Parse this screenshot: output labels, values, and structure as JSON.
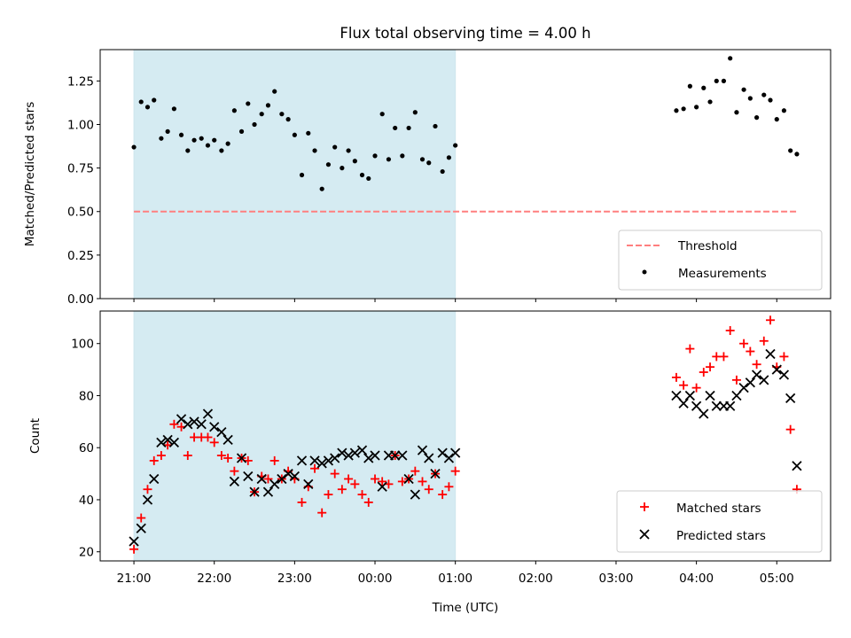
{
  "chart_data": [
    {
      "type": "scatter",
      "title": "Flux total observing time = 4.00 h",
      "ylabel": "Matched/Predicted stars",
      "xlabel": "",
      "ylim": [
        0.0,
        1.43
      ],
      "yticks": [
        "0.00",
        "0.25",
        "0.50",
        "0.75",
        "1.00",
        "1.25"
      ],
      "ytick_values": [
        0.0,
        0.25,
        0.5,
        0.75,
        1.0,
        1.25
      ],
      "shaded_interval_hours": [
        21.0,
        25.0
      ],
      "shaded_color": "#add8e6",
      "threshold": {
        "name": "Threshold",
        "value": 0.5,
        "x_range_hours": [
          21.0,
          29.25
        ],
        "color": "#ff7f7f",
        "style": "dashed"
      },
      "legend": {
        "placement": "lower-right",
        "entries": [
          "Threshold",
          "Measurements"
        ]
      },
      "series": [
        {
          "name": "Measurements",
          "color": "#000000",
          "marker": "dot",
          "x_hours": [
            21.0,
            21.09,
            21.17,
            21.25,
            21.34,
            21.42,
            21.5,
            21.59,
            21.67,
            21.75,
            21.84,
            21.92,
            22.0,
            22.09,
            22.17,
            22.25,
            22.34,
            22.42,
            22.5,
            22.59,
            22.67,
            22.75,
            22.84,
            22.92,
            23.0,
            23.09,
            23.17,
            23.25,
            23.34,
            23.42,
            23.5,
            23.59,
            23.67,
            23.75,
            23.84,
            23.92,
            24.0,
            24.09,
            24.17,
            24.25,
            24.34,
            24.42,
            24.5,
            24.59,
            24.67,
            24.75,
            24.84,
            24.92,
            25.0,
            27.75,
            27.84,
            27.92,
            28.0,
            28.09,
            28.17,
            28.25,
            28.34,
            28.42,
            28.5,
            28.59,
            28.67,
            28.75,
            28.84,
            28.92,
            29.0,
            29.09,
            29.17,
            29.25
          ],
          "y": [
            0.87,
            1.13,
            1.1,
            1.14,
            0.92,
            0.96,
            1.09,
            0.94,
            0.85,
            0.91,
            0.92,
            0.88,
            0.91,
            0.85,
            0.89,
            1.08,
            0.96,
            1.12,
            1.0,
            1.06,
            1.11,
            1.19,
            1.06,
            1.03,
            0.94,
            0.71,
            0.95,
            0.85,
            0.63,
            0.77,
            0.87,
            0.75,
            0.85,
            0.79,
            0.71,
            0.69,
            0.82,
            1.06,
            0.8,
            0.98,
            0.82,
            0.98,
            1.07,
            0.8,
            0.78,
            0.99,
            0.73,
            0.81,
            0.88,
            1.08,
            1.09,
            1.22,
            1.1,
            1.21,
            1.13,
            1.25,
            1.25,
            1.38,
            1.07,
            1.2,
            1.15,
            1.04,
            1.17,
            1.14,
            1.03,
            1.08,
            0.85,
            0.83
          ]
        }
      ]
    },
    {
      "type": "scatter",
      "title": "",
      "ylabel": "Count",
      "xlabel": "Time (UTC)",
      "ylim": [
        16.5,
        112.5
      ],
      "yticks": [
        "20",
        "40",
        "60",
        "80",
        "100"
      ],
      "ytick_values": [
        20,
        40,
        60,
        80,
        100
      ],
      "xlim_hours": [
        20.58,
        29.67
      ],
      "xticks": [
        "21:00",
        "22:00",
        "23:00",
        "00:00",
        "01:00",
        "02:00",
        "03:00",
        "04:00",
        "05:00"
      ],
      "xtick_values_hours": [
        21,
        22,
        23,
        24,
        25,
        26,
        27,
        28,
        29
      ],
      "shaded_interval_hours": [
        21.0,
        25.0
      ],
      "shaded_color": "#add8e6",
      "legend": {
        "placement": "lower-right",
        "entries": [
          "Matched stars",
          "Predicted stars"
        ]
      },
      "series": [
        {
          "name": "Matched stars",
          "color": "#ff0000",
          "marker": "plus",
          "x_hours": [
            21.0,
            21.09,
            21.17,
            21.25,
            21.34,
            21.42,
            21.5,
            21.59,
            21.67,
            21.75,
            21.84,
            21.92,
            22.0,
            22.09,
            22.17,
            22.25,
            22.34,
            22.42,
            22.5,
            22.59,
            22.67,
            22.75,
            22.84,
            22.92,
            23.0,
            23.09,
            23.17,
            23.25,
            23.34,
            23.42,
            23.5,
            23.59,
            23.67,
            23.75,
            23.84,
            23.92,
            24.0,
            24.09,
            24.17,
            24.25,
            24.34,
            24.42,
            24.5,
            24.59,
            24.67,
            24.75,
            24.84,
            24.92,
            25.0,
            27.75,
            27.84,
            27.92,
            28.0,
            28.09,
            28.17,
            28.25,
            28.34,
            28.42,
            28.5,
            28.59,
            28.67,
            28.75,
            28.84,
            28.92,
            29.0,
            29.09,
            29.17,
            29.25
          ],
          "y": [
            21,
            33,
            44,
            55,
            57,
            61,
            69,
            68,
            57,
            64,
            64,
            64,
            62,
            57,
            56,
            51,
            56,
            55,
            43,
            49,
            48,
            55,
            48,
            51,
            48,
            39,
            45,
            52,
            35,
            42,
            50,
            44,
            48,
            46,
            42,
            39,
            48,
            47,
            46,
            57,
            47,
            48,
            51,
            47,
            44,
            50,
            42,
            45,
            51,
            87,
            84,
            98,
            83,
            89,
            91,
            95,
            95,
            105,
            86,
            100,
            97,
            92,
            101,
            109,
            91,
            95,
            67,
            44
          ]
        },
        {
          "name": "Predicted stars",
          "color": "#000000",
          "marker": "x",
          "x_hours": [
            21.0,
            21.09,
            21.17,
            21.25,
            21.34,
            21.42,
            21.5,
            21.59,
            21.67,
            21.75,
            21.84,
            21.92,
            22.0,
            22.09,
            22.17,
            22.25,
            22.34,
            22.42,
            22.5,
            22.59,
            22.67,
            22.75,
            22.84,
            22.92,
            23.0,
            23.09,
            23.17,
            23.25,
            23.34,
            23.42,
            23.5,
            23.59,
            23.67,
            23.75,
            23.84,
            23.92,
            24.0,
            24.09,
            24.17,
            24.25,
            24.34,
            24.42,
            24.5,
            24.59,
            24.67,
            24.75,
            24.84,
            24.92,
            25.0,
            27.75,
            27.84,
            27.92,
            28.0,
            28.09,
            28.17,
            28.25,
            28.34,
            28.42,
            28.5,
            28.59,
            28.67,
            28.75,
            28.84,
            28.92,
            29.0,
            29.09,
            29.17,
            29.25
          ],
          "y": [
            24,
            29,
            40,
            48,
            62,
            63,
            62,
            71,
            69,
            70,
            69,
            73,
            68,
            66,
            63,
            47,
            56,
            49,
            43,
            48,
            43,
            46,
            48,
            50,
            49,
            55,
            46,
            55,
            54,
            55,
            56,
            58,
            57,
            58,
            59,
            56,
            57,
            45,
            57,
            57,
            57,
            48,
            42,
            59,
            56,
            50,
            58,
            56,
            58,
            80,
            77,
            80,
            76,
            73,
            80,
            76,
            76,
            76,
            80,
            83,
            85,
            88,
            86,
            96,
            90,
            88,
            79,
            53
          ]
        }
      ]
    }
  ]
}
